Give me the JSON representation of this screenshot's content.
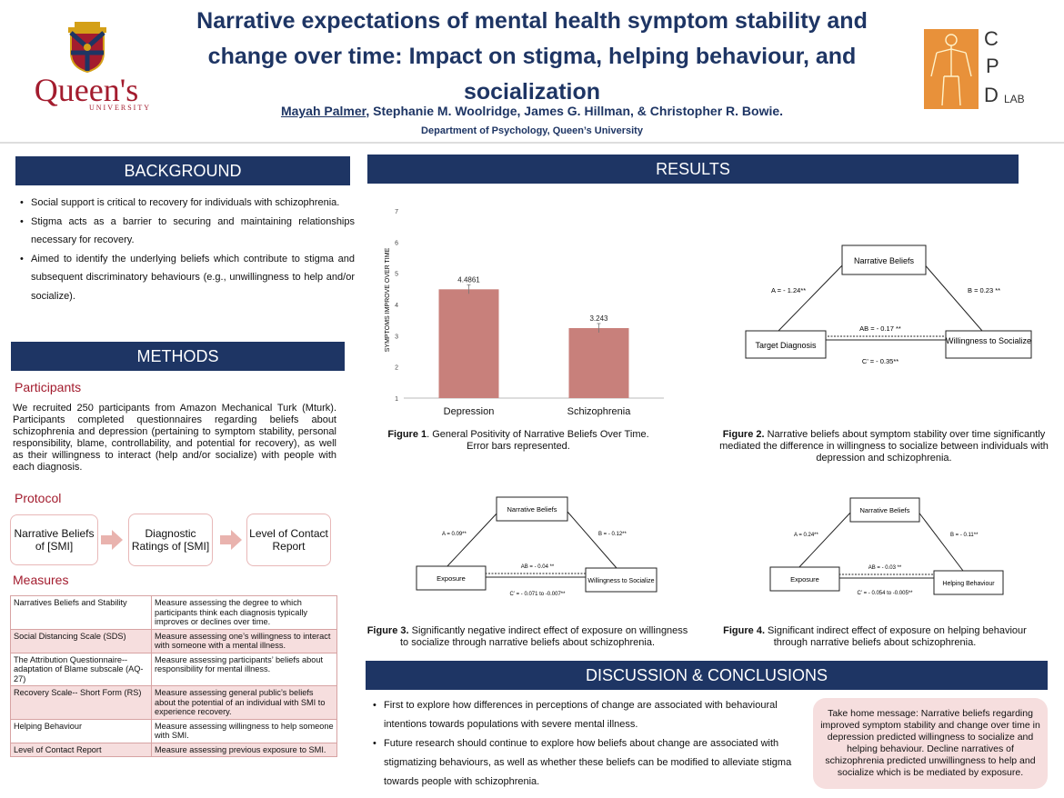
{
  "header": {
    "title": "Narrative expectations of mental health symptom stability and change over time: Impact on stigma, helping behaviour, and socialization",
    "first_author": "Mayah Palmer",
    "other_authors": ", Stephanie M. Woolridge, James G. Hillman, & Christopher R. Bowie.",
    "department": "Department of Psychology, Queen’s University",
    "queens_logo": {
      "name": "Queen's",
      "sub": "UNIVERSITY"
    },
    "cpd_logo": {
      "c": "C",
      "p": "P",
      "d": "D",
      "lab": "LAB"
    }
  },
  "background": {
    "heading": "BACKGROUND",
    "items": [
      "Social support is critical to recovery for individuals with schizophrenia.",
      "Stigma acts as a barrier to securing and maintaining relationships necessary for recovery.",
      "Aimed to identify the underlying beliefs which contribute to stigma and subsequent discriminatory behaviours (e.g., unwillingness to help and/or socialize)."
    ]
  },
  "methods": {
    "heading": "METHODS",
    "participants_heading": "Participants",
    "participants_text": "We recruited 250 participants from Amazon Mechanical Turk (Mturk). Participants completed questionnaires regarding beliefs about schizophrenia and depression (pertaining to symptom stability, personal responsibility, blame, controllability, and potential for recovery), as well as their willingness to interact (help and/or socialize) with people with each diagnosis.",
    "protocol_heading": "Protocol",
    "protocol_steps": [
      "Narrative Beliefs of [SMI]",
      "Diagnostic Ratings of [SMI]",
      "Level of Contact Report"
    ],
    "measures_heading": "Measures",
    "measures": [
      {
        "name": "Narratives Beliefs and Stability",
        "desc": "Measure assessing the degree to which participants think each diagnosis typically improves or declines over time."
      },
      {
        "name": "Social Distancing Scale (SDS)",
        "desc": "Measure assessing one’s willingness to interact with someone with a mental illness."
      },
      {
        "name": "The Attribution Questionnaire-- adaptation of Blame subscale (AQ-27)",
        "desc": "Measure assessing participants’ beliefs about responsibility for mental illness."
      },
      {
        "name": "Recovery Scale-- Short Form (RS)",
        "desc": "Measure assessing general public’s beliefs about the potential of an individual with SMI to experience recovery."
      },
      {
        "name": "Helping Behaviour",
        "desc": "Measure assessing willingness to help someone with SMI."
      },
      {
        "name": "Level of Contact Report",
        "desc": "Measure assessing previous exposure to SMI."
      }
    ]
  },
  "results": {
    "heading": "RESULTS",
    "fig1_caption_label": "Figure 1",
    "fig1_caption_text": ". General Positivity of Narrative Beliefs Over Time. Error bars represented.",
    "fig2_caption_label": "Figure 2.",
    "fig2_caption_text": " Narrative beliefs about symptom stability over time significantly mediated the difference in willingness to socialize between individuals with depression and schizophrenia.",
    "fig3_caption_label": "Figure 3.",
    "fig3_caption_text": " Significantly negative indirect effect of exposure on willingness to socialize through narrative beliefs about schizophrenia.",
    "fig4_caption_label": "Figure 4.",
    "fig4_caption_text": " Significant indirect effect of exposure on helping behaviour through narrative beliefs about schizophrenia.",
    "fig2": {
      "top": "Narrative Beliefs",
      "left": "Target Diagnosis",
      "right": "Willingness to Socialize",
      "a": "A = - 1.24**",
      "b": "B = 0.23 **",
      "ab": "AB = - 0.17 **",
      "c": "C’ = - 0.35**"
    },
    "fig3": {
      "top": "Narrative Beliefs",
      "left": "Exposure",
      "right": "Willingness to Socialize",
      "a": "A = 0.09**",
      "b": "B = - 0.12**",
      "ab": "AB = - 0.04 **",
      "c": "C’ = - 0.071 to -0.007**"
    },
    "fig4": {
      "top": "Narrative Beliefs",
      "left": "Exposure",
      "right": "Helping Behaviour",
      "a": "A = 0.24**",
      "b": "B = - 0.11**",
      "ab": "AB = - 0.03 **",
      "c": "C’ = - 0.054 to -0.005**"
    }
  },
  "chart_data": {
    "type": "bar",
    "categories": [
      "Depression",
      "Schizophrenia"
    ],
    "values": [
      4.4861,
      3.243
    ],
    "value_labels": [
      "4.4861",
      "3.243"
    ],
    "ylabel": "SYMPTOMS IMPROVE OVER TIME",
    "ylim": [
      1,
      7
    ],
    "yticks": [
      1,
      2,
      3,
      4,
      5,
      6,
      7
    ],
    "bar_color": "#c8807b",
    "error_bars": true,
    "grid": false
  },
  "discussion": {
    "heading": "DISCUSSION & CONCLUSIONS",
    "items": [
      "First to explore how differences in  perceptions of change are associated with behavioural intentions towards populations with severe mental illness.",
      "Future research should continue to explore how beliefs about change are associated with stigmatizing behaviours, as well as whether these beliefs can be modified to alleviate stigma towards people with schizophrenia."
    ],
    "take_home": "Take home message: Narrative beliefs regarding improved symptom stability and change over time in depression predicted willingness to socialize and helping behaviour. Decline narratives of schizophrenia predicted unwillingness to help and socialize which is be mediated by exposure."
  },
  "colors": {
    "navy": "#1e3564",
    "crimson": "#a31c2e",
    "pink": "#f6dede",
    "orange": "#e8913a"
  }
}
